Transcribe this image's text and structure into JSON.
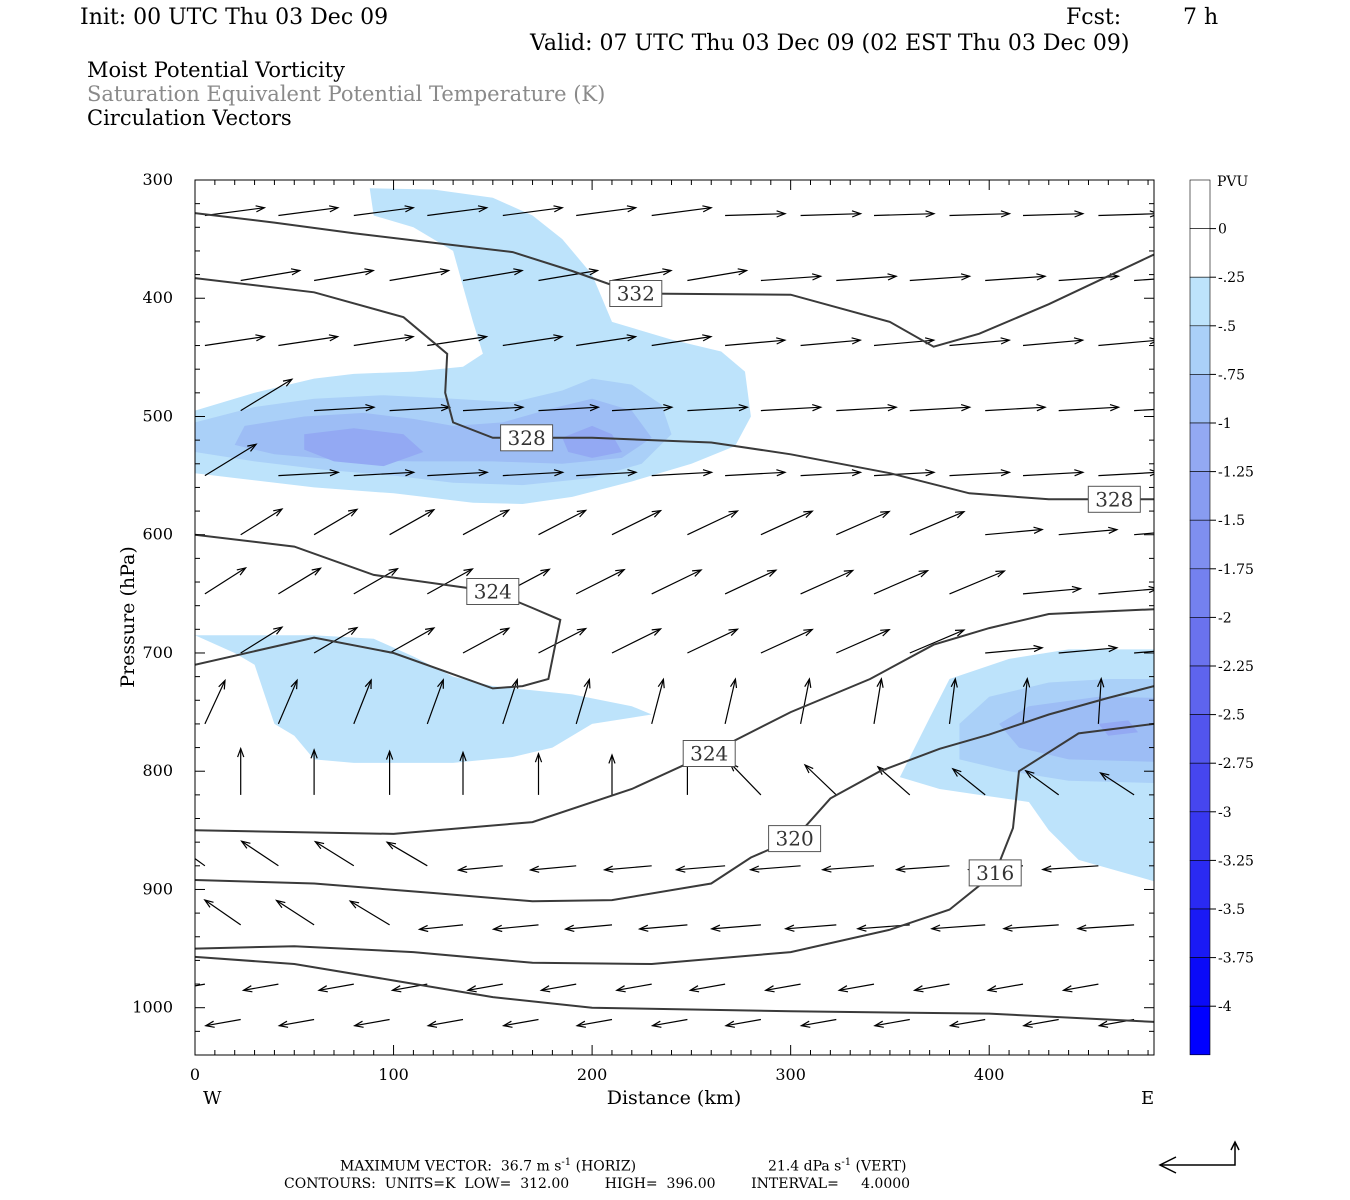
{
  "header": {
    "init": "Init: 00 UTC Thu 03 Dec 09",
    "fcst_label": "Fcst:",
    "fcst_value": "7 h",
    "valid": "Valid: 07 UTC Thu 03 Dec 09 (02 EST Thu 03 Dec 09)"
  },
  "fields": {
    "field1": "Moist Potential Vorticity",
    "field2": "Saturation Equivalent Potential Temperature (K)",
    "field3": "Circulation Vectors"
  },
  "colors": {
    "shade_025": "#bde3fb",
    "shade_05": "#aad0f8",
    "shade_075": "#9dbdf5",
    "shade_1": "#93a9f3",
    "contour": "#3a3a3a",
    "arrow": "#000000"
  },
  "chart_data": {
    "type": "cross-section",
    "title": "",
    "xlabel": "Distance (km)",
    "ylabel": "Pressure (hPa)",
    "xlim": [
      0,
      483
    ],
    "ylim": [
      1040,
      300
    ],
    "x_ticks": [
      "0",
      "100",
      "200",
      "300",
      "400"
    ],
    "y_ticks": [
      "300",
      "400",
      "500",
      "600",
      "700",
      "800",
      "900",
      "1000"
    ],
    "x_end_labels": {
      "left": "W",
      "right": "E"
    },
    "colorbar": {
      "label": "PVU",
      "levels": [
        "0",
        "-.25",
        "-.5",
        "-.75",
        "-1",
        "-1.25",
        "-1.5",
        "-1.75",
        "-2",
        "-2.25",
        "-2.5",
        "-2.75",
        "-3",
        "-3.25",
        "-3.5",
        "-3.75",
        "-4"
      ]
    },
    "contour_labels": [
      {
        "text": "332",
        "x": 222,
        "p": 396
      },
      {
        "text": "328",
        "x": 167,
        "p": 518
      },
      {
        "text": "328",
        "x": 463,
        "p": 570
      },
      {
        "text": "324",
        "x": 150,
        "p": 648
      },
      {
        "text": "324",
        "x": 259,
        "p": 785
      },
      {
        "text": "320",
        "x": 302,
        "p": 857
      },
      {
        "text": "316",
        "x": 403,
        "p": 886
      }
    ],
    "contours": [
      [
        [
          0,
          328
        ],
        [
          40,
          336
        ],
        [
          80,
          345
        ],
        [
          120,
          353
        ],
        [
          160,
          361
        ],
        [
          190,
          377
        ],
        [
          222,
          396
        ],
        [
          300,
          397
        ],
        [
          350,
          420
        ],
        [
          372,
          441
        ],
        [
          395,
          430
        ],
        [
          430,
          405
        ],
        [
          483,
          363
        ]
      ],
      [
        [
          0,
          383
        ],
        [
          60,
          395
        ],
        [
          105,
          416
        ],
        [
          127,
          447
        ],
        [
          126,
          480
        ],
        [
          130,
          505
        ],
        [
          150,
          518
        ],
        [
          200,
          518
        ],
        [
          260,
          522
        ],
        [
          300,
          532
        ],
        [
          350,
          548
        ],
        [
          390,
          565
        ],
        [
          430,
          570
        ],
        [
          483,
          570
        ]
      ],
      [
        [
          0,
          600
        ],
        [
          50,
          610
        ],
        [
          90,
          634
        ],
        [
          150,
          648
        ],
        [
          170,
          662
        ],
        [
          184,
          672
        ],
        [
          178,
          722
        ],
        [
          165,
          728
        ],
        [
          150,
          730
        ],
        [
          100,
          700
        ],
        [
          60,
          687
        ],
        [
          0,
          710
        ]
      ],
      [
        [
          0,
          850
        ],
        [
          100,
          853
        ],
        [
          170,
          843
        ],
        [
          220,
          815
        ],
        [
          259,
          785
        ],
        [
          300,
          750
        ],
        [
          340,
          722
        ],
        [
          372,
          693
        ],
        [
          400,
          679
        ],
        [
          430,
          667
        ],
        [
          483,
          663
        ]
      ],
      [
        [
          0,
          892
        ],
        [
          60,
          895
        ],
        [
          120,
          903
        ],
        [
          170,
          910
        ],
        [
          210,
          909
        ],
        [
          260,
          895
        ],
        [
          280,
          873
        ],
        [
          302,
          857
        ],
        [
          320,
          823
        ],
        [
          345,
          800
        ],
        [
          375,
          781
        ],
        [
          400,
          769
        ],
        [
          430,
          752
        ],
        [
          460,
          738
        ],
        [
          483,
          728
        ]
      ],
      [
        [
          0,
          950
        ],
        [
          50,
          948
        ],
        [
          110,
          953
        ],
        [
          170,
          962
        ],
        [
          230,
          963
        ],
        [
          300,
          953
        ],
        [
          350,
          934
        ],
        [
          380,
          917
        ],
        [
          403,
          886
        ],
        [
          412,
          848
        ],
        [
          415,
          800
        ],
        [
          445,
          768
        ],
        [
          483,
          760
        ]
      ],
      [
        [
          0,
          957
        ],
        [
          50,
          963
        ],
        [
          100,
          977
        ],
        [
          150,
          991
        ],
        [
          200,
          1000
        ],
        [
          300,
          1003
        ],
        [
          400,
          1005
        ],
        [
          483,
          1012
        ]
      ]
    ],
    "pv_025": [
      [
        [
          88,
          307
        ],
        [
          120,
          308
        ],
        [
          150,
          315
        ],
        [
          170,
          330
        ],
        [
          185,
          350
        ],
        [
          200,
          380
        ],
        [
          210,
          420
        ],
        [
          240,
          435
        ],
        [
          265,
          445
        ],
        [
          277,
          462
        ],
        [
          280,
          500
        ],
        [
          272,
          525
        ],
        [
          250,
          540
        ],
        [
          220,
          555
        ],
        [
          190,
          568
        ],
        [
          165,
          574
        ],
        [
          140,
          573
        ],
        [
          100,
          565
        ],
        [
          60,
          560
        ],
        [
          20,
          552
        ],
        [
          0,
          548
        ],
        [
          0,
          495
        ],
        [
          30,
          480
        ],
        [
          60,
          468
        ],
        [
          80,
          464
        ],
        [
          110,
          462
        ],
        [
          135,
          458
        ],
        [
          145,
          447
        ],
        [
          140,
          420
        ],
        [
          135,
          390
        ],
        [
          130,
          360
        ],
        [
          110,
          340
        ],
        [
          90,
          330
        ]
      ],
      [
        [
          0,
          685
        ],
        [
          60,
          685
        ],
        [
          90,
          688
        ],
        [
          110,
          703
        ],
        [
          130,
          720
        ],
        [
          150,
          728
        ],
        [
          190,
          735
        ],
        [
          220,
          745
        ],
        [
          230,
          752
        ],
        [
          200,
          760
        ],
        [
          180,
          780
        ],
        [
          160,
          788
        ],
        [
          130,
          793
        ],
        [
          80,
          793
        ],
        [
          60,
          790
        ],
        [
          50,
          770
        ],
        [
          40,
          760
        ],
        [
          35,
          735
        ],
        [
          30,
          710
        ],
        [
          20,
          700
        ]
      ],
      [
        [
          483,
          697
        ],
        [
          440,
          697
        ],
        [
          410,
          705
        ],
        [
          380,
          722
        ],
        [
          370,
          755
        ],
        [
          355,
          805
        ],
        [
          375,
          815
        ],
        [
          395,
          820
        ],
        [
          420,
          826
        ],
        [
          430,
          850
        ],
        [
          445,
          875
        ],
        [
          483,
          893
        ]
      ]
    ],
    "pv_05": [
      [
        [
          0,
          505
        ],
        [
          30,
          492
        ],
        [
          60,
          485
        ],
        [
          95,
          482
        ],
        [
          130,
          485
        ],
        [
          160,
          488
        ],
        [
          185,
          478
        ],
        [
          200,
          468
        ],
        [
          220,
          473
        ],
        [
          235,
          490
        ],
        [
          240,
          515
        ],
        [
          225,
          540
        ],
        [
          200,
          552
        ],
        [
          165,
          558
        ],
        [
          130,
          556
        ],
        [
          100,
          550
        ],
        [
          65,
          545
        ],
        [
          30,
          538
        ],
        [
          0,
          530
        ]
      ],
      [
        [
          483,
          722
        ],
        [
          460,
          722
        ],
        [
          430,
          725
        ],
        [
          400,
          737
        ],
        [
          385,
          760
        ],
        [
          385,
          790
        ],
        [
          410,
          800
        ],
        [
          440,
          808
        ],
        [
          483,
          810
        ]
      ]
    ],
    "pv_075": [
      [
        [
          25,
          508
        ],
        [
          55,
          500
        ],
        [
          85,
          497
        ],
        [
          110,
          502
        ],
        [
          130,
          508
        ],
        [
          155,
          505
        ],
        [
          180,
          493
        ],
        [
          200,
          485
        ],
        [
          220,
          495
        ],
        [
          230,
          518
        ],
        [
          215,
          535
        ],
        [
          185,
          540
        ],
        [
          150,
          538
        ],
        [
          110,
          538
        ],
        [
          75,
          537
        ],
        [
          40,
          532
        ],
        [
          20,
          524
        ]
      ],
      [
        [
          483,
          738
        ],
        [
          455,
          737
        ],
        [
          420,
          745
        ],
        [
          405,
          760
        ],
        [
          415,
          780
        ],
        [
          440,
          790
        ],
        [
          483,
          792
        ]
      ]
    ],
    "pv_1": [
      [
        [
          55,
          515
        ],
        [
          80,
          510
        ],
        [
          105,
          515
        ],
        [
          115,
          530
        ],
        [
          95,
          542
        ],
        [
          70,
          538
        ],
        [
          55,
          528
        ]
      ],
      [
        [
          185,
          518
        ],
        [
          200,
          508
        ],
        [
          210,
          515
        ],
        [
          215,
          530
        ],
        [
          200,
          535
        ],
        [
          188,
          530
        ]
      ],
      [
        [
          455,
          760
        ],
        [
          470,
          757
        ],
        [
          475,
          767
        ],
        [
          460,
          770
        ]
      ]
    ],
    "vector_scale": {
      "max_horiz": "36.7",
      "max_vert": "21.4"
    }
  },
  "footer": {
    "max_vector": "MAXIMUM VECTOR:  36.7 m s",
    "max_vector_unit_exp": "-1",
    "horiz": " (HORIZ)",
    "vert_value": "21.4 dPa s",
    "vert_exp": "-1",
    "vert_label": " (VERT)",
    "contours": "CONTOURS:  UNITS=K  LOW=  312.00        HIGH=  396.00        INTERVAL=     4.0000"
  }
}
